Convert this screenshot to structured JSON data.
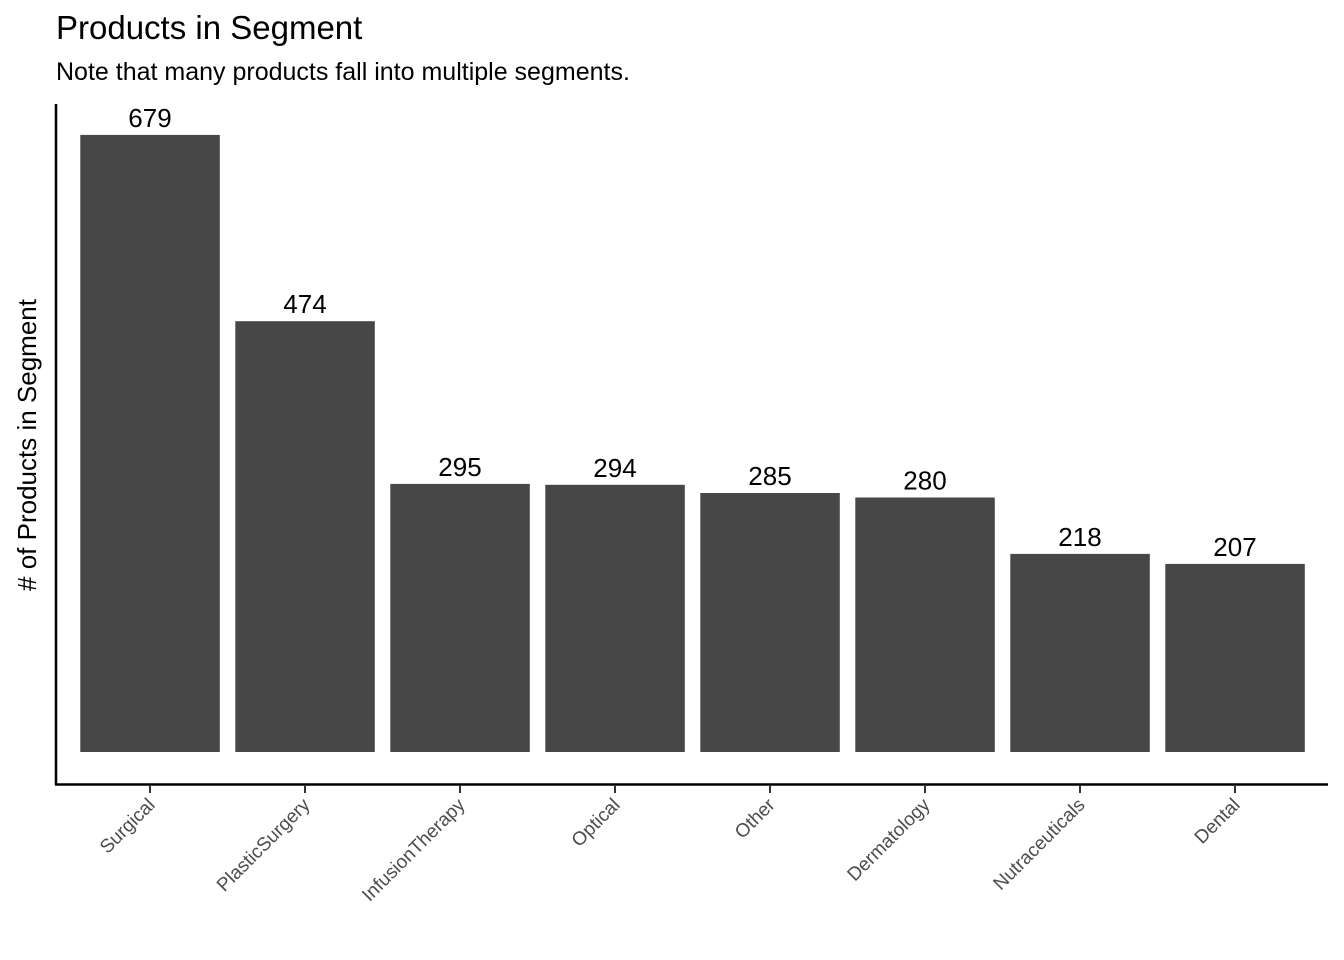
{
  "chart_data": {
    "type": "bar",
    "title": "Products in Segment",
    "subtitle": "Note that many products fall into multiple segments.",
    "xlabel": "",
    "ylabel": "# of Products in Segment",
    "categories": [
      "Surgical",
      "PlasticSurgery",
      "InfusionTherapy",
      "Optical",
      "Other",
      "Dermatology",
      "Nutraceuticals",
      "Dental"
    ],
    "values": [
      679,
      474,
      295,
      294,
      285,
      280,
      218,
      207
    ],
    "ylim": [
      0,
      713
    ],
    "bar_color": "#474747",
    "y_tick_labels_shown": false,
    "grid": false,
    "data_labels": true
  }
}
